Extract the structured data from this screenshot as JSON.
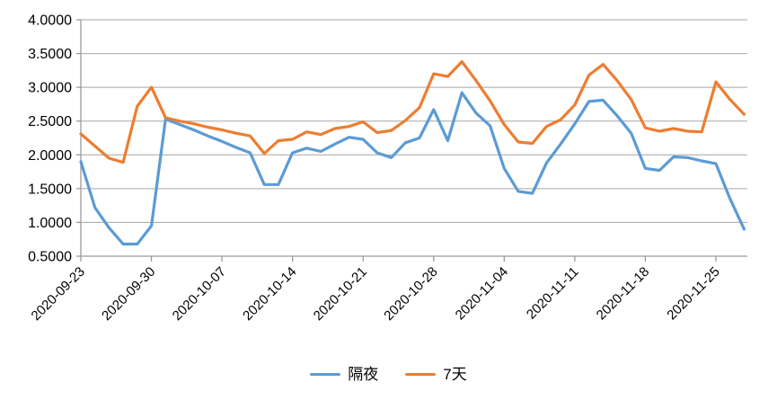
{
  "chart_data": {
    "type": "line",
    "title": "",
    "x_tick_labels": [
      "2020-09-23",
      "2020-09-30",
      "2020-10-07",
      "2020-10-14",
      "2020-10-21",
      "2020-10-28",
      "2020-11-04",
      "2020-11-11",
      "2020-11-18",
      "2020-11-25"
    ],
    "label_every": 5,
    "n_points": 48,
    "series": [
      {
        "name": "隔夜",
        "color": "#5B9BD5",
        "values": [
          1.9,
          1.22,
          0.92,
          0.68,
          0.68,
          0.95,
          2.53,
          2.45,
          2.37,
          2.28,
          2.2,
          2.11,
          2.03,
          1.56,
          1.56,
          2.03,
          2.1,
          2.05,
          2.16,
          2.26,
          2.23,
          2.03,
          1.96,
          2.18,
          2.25,
          2.67,
          2.21,
          2.92,
          2.62,
          2.43,
          1.8,
          1.46,
          1.43,
          1.88,
          2.16,
          2.46,
          2.79,
          2.81,
          2.58,
          2.32,
          1.8,
          1.77,
          1.97,
          1.96,
          1.91,
          1.87,
          1.35,
          0.9
        ]
      },
      {
        "name": "7天",
        "color": "#ED7D31",
        "values": [
          2.31,
          2.13,
          1.95,
          1.89,
          2.72,
          3.0,
          2.55,
          2.5,
          2.46,
          2.41,
          2.37,
          2.32,
          2.28,
          2.02,
          2.21,
          2.23,
          2.34,
          2.3,
          2.39,
          2.42,
          2.49,
          2.33,
          2.36,
          2.51,
          2.7,
          3.2,
          3.16,
          3.38,
          3.1,
          2.8,
          2.45,
          2.19,
          2.17,
          2.42,
          2.52,
          2.74,
          3.18,
          3.34,
          3.1,
          2.82,
          2.4,
          2.35,
          2.39,
          2.35,
          2.34,
          3.08,
          2.82,
          2.6
        ]
      }
    ],
    "ylim": [
      0.5,
      4.0
    ],
    "ytick_step": 0.5,
    "y_tick_labels": [
      "0.5000",
      "1.0000",
      "1.5000",
      "2.0000",
      "2.5000",
      "3.0000",
      "3.5000",
      "4.0000"
    ],
    "grid": "horizontal",
    "legend_position": "bottom",
    "axis_color": "#9a9a9a",
    "grid_color": "#a6a6a6",
    "text_color": "#000000"
  },
  "legend": {
    "items": [
      {
        "label": "隔夜",
        "color": "#5B9BD5"
      },
      {
        "label": "7天",
        "color": "#ED7D31"
      }
    ]
  }
}
